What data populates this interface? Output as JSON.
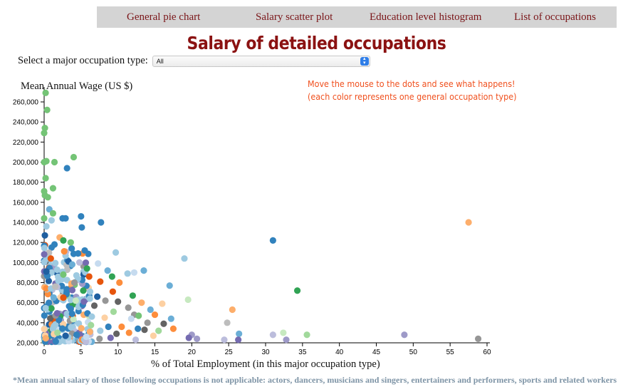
{
  "nav": {
    "items": [
      "General pie chart",
      "Salary scatter plot",
      "Education level histogram",
      "List of occupations"
    ]
  },
  "page_title": "Salary of detailed occupations",
  "selector": {
    "label": "Select a major occupation type:",
    "value": "All"
  },
  "hint": {
    "line1": "Move the mouse to the dots and see what happens!",
    "line2": "(each color represents one general occupation type)"
  },
  "footnote": "*Mean annual salary of those following occupations is not applicable: actors, dancers, musicians and singers, entertainers and performers, sports and related workers",
  "colors": {
    "palette": [
      "#3182bd",
      "#6baed6",
      "#9ecae1",
      "#c6dbef",
      "#e6550d",
      "#fd8d3c",
      "#fdae6b",
      "#fdd0a2",
      "#31a354",
      "#74c476",
      "#a1d99b",
      "#c7e9c0",
      "#756bb1",
      "#9e9ac8",
      "#bcbddc",
      "#636363",
      "#969696",
      "#bdbdbd",
      "#1f5fa0"
    ]
  },
  "chart_data": {
    "type": "scatter",
    "xlabel": "% of Total Employment (in this major occupation type)",
    "ylabel": "Mean Annual Wage (US $)",
    "xlim": [
      0,
      60
    ],
    "ylim": [
      20000,
      270000
    ],
    "x_ticks": [
      0,
      5,
      10,
      15,
      20,
      25,
      30,
      35,
      40,
      45,
      50,
      55,
      60
    ],
    "y_ticks": [
      20000,
      40000,
      60000,
      80000,
      100000,
      120000,
      140000,
      160000,
      180000,
      200000,
      220000,
      240000,
      260000
    ],
    "x_tick_labels": [
      "0",
      "5",
      "10",
      "15",
      "20",
      "25",
      "30",
      "35",
      "40",
      "45",
      "50",
      "55",
      "60"
    ],
    "y_tick_labels": [
      "20,000",
      "40,000",
      "60,000",
      "80,000",
      "100,000",
      "120,000",
      "140,000",
      "160,000",
      "180,000",
      "200,000",
      "220,000",
      "240,000",
      "260,000"
    ],
    "points": [
      {
        "x": 0.2,
        "y": 269000,
        "c": 9
      },
      {
        "x": 0.4,
        "y": 252000,
        "c": 9
      },
      {
        "x": 0.1,
        "y": 234000,
        "c": 9
      },
      {
        "x": 0.0,
        "y": 229000,
        "c": 9
      },
      {
        "x": 4.0,
        "y": 205000,
        "c": 9
      },
      {
        "x": 0.3,
        "y": 201000,
        "c": 9
      },
      {
        "x": 0.0,
        "y": 200000,
        "c": 9
      },
      {
        "x": 1.4,
        "y": 200000,
        "c": 9
      },
      {
        "x": 3.1,
        "y": 194000,
        "c": 0
      },
      {
        "x": 0.2,
        "y": 184000,
        "c": 9
      },
      {
        "x": 1.2,
        "y": 174000,
        "c": 9
      },
      {
        "x": 0.0,
        "y": 171000,
        "c": 9
      },
      {
        "x": 0.1,
        "y": 167000,
        "c": 9
      },
      {
        "x": 0.5,
        "y": 165000,
        "c": 9
      },
      {
        "x": 0.7,
        "y": 153000,
        "c": 1
      },
      {
        "x": 1.2,
        "y": 149000,
        "c": 9
      },
      {
        "x": 0.0,
        "y": 144000,
        "c": 9
      },
      {
        "x": 2.5,
        "y": 144000,
        "c": 0
      },
      {
        "x": 2.9,
        "y": 144000,
        "c": 0
      },
      {
        "x": 5.0,
        "y": 146000,
        "c": 0
      },
      {
        "x": 1.0,
        "y": 142000,
        "c": 2
      },
      {
        "x": 7.7,
        "y": 140000,
        "c": 0
      },
      {
        "x": 57.5,
        "y": 140000,
        "c": 6
      },
      {
        "x": 0.3,
        "y": 136000,
        "c": 2
      },
      {
        "x": 5.1,
        "y": 135000,
        "c": 0
      },
      {
        "x": 0.1,
        "y": 127000,
        "c": 18
      },
      {
        "x": 2.1,
        "y": 125000,
        "c": 6
      },
      {
        "x": 2.6,
        "y": 122000,
        "c": 8
      },
      {
        "x": 3.6,
        "y": 120000,
        "c": 9
      },
      {
        "x": 31.0,
        "y": 122000,
        "c": 0
      },
      {
        "x": 1.4,
        "y": 118000,
        "c": 0
      },
      {
        "x": 5.5,
        "y": 112000,
        "c": 0
      },
      {
        "x": 9.7,
        "y": 110000,
        "c": 2
      },
      {
        "x": 4.6,
        "y": 109000,
        "c": 0
      },
      {
        "x": 0.9,
        "y": 104000,
        "c": 4
      },
      {
        "x": 19.0,
        "y": 104000,
        "c": 2
      },
      {
        "x": 3.3,
        "y": 101000,
        "c": 18
      },
      {
        "x": 7.3,
        "y": 99000,
        "c": 3
      },
      {
        "x": 3.8,
        "y": 98000,
        "c": 1
      },
      {
        "x": 5.8,
        "y": 94000,
        "c": 8
      },
      {
        "x": 8.6,
        "y": 92000,
        "c": 1
      },
      {
        "x": 13.5,
        "y": 92000,
        "c": 1
      },
      {
        "x": 11.3,
        "y": 89000,
        "c": 2
      },
      {
        "x": 12.2,
        "y": 90000,
        "c": 3
      },
      {
        "x": 0.3,
        "y": 91000,
        "c": 18
      },
      {
        "x": 2.6,
        "y": 88000,
        "c": 9
      },
      {
        "x": 6.1,
        "y": 86000,
        "c": 4
      },
      {
        "x": 9.2,
        "y": 86000,
        "c": 8
      },
      {
        "x": 7.6,
        "y": 81000,
        "c": 4
      },
      {
        "x": 10.2,
        "y": 80000,
        "c": 5
      },
      {
        "x": 3.7,
        "y": 79000,
        "c": 6
      },
      {
        "x": 4.1,
        "y": 80000,
        "c": 16
      },
      {
        "x": 17.0,
        "y": 77000,
        "c": 1
      },
      {
        "x": 34.3,
        "y": 72000,
        "c": 8
      },
      {
        "x": 1.5,
        "y": 76000,
        "c": 17
      },
      {
        "x": 9.3,
        "y": 71000,
        "c": 4
      },
      {
        "x": 5.3,
        "y": 72000,
        "c": 8
      },
      {
        "x": 12.0,
        "y": 67000,
        "c": 8
      },
      {
        "x": 7.2,
        "y": 66000,
        "c": 18
      },
      {
        "x": 19.5,
        "y": 63000,
        "c": 11
      },
      {
        "x": 10.0,
        "y": 61000,
        "c": 15
      },
      {
        "x": 13.2,
        "y": 60000,
        "c": 6
      },
      {
        "x": 16.0,
        "y": 59000,
        "c": 7
      },
      {
        "x": 8.3,
        "y": 62000,
        "c": 16
      },
      {
        "x": 2.6,
        "y": 65000,
        "c": 4
      },
      {
        "x": 6.8,
        "y": 57000,
        "c": 15
      },
      {
        "x": 11.4,
        "y": 55000,
        "c": 16
      },
      {
        "x": 14.4,
        "y": 53000,
        "c": 1
      },
      {
        "x": 25.5,
        "y": 53000,
        "c": 6
      },
      {
        "x": 15.0,
        "y": 48000,
        "c": 5
      },
      {
        "x": 9.4,
        "y": 51000,
        "c": 10
      },
      {
        "x": 12.2,
        "y": 48000,
        "c": 16
      },
      {
        "x": 12.8,
        "y": 47000,
        "c": 9
      },
      {
        "x": 17.2,
        "y": 44000,
        "c": 1
      },
      {
        "x": 11.8,
        "y": 44000,
        "c": 3
      },
      {
        "x": 8.2,
        "y": 45000,
        "c": 7
      },
      {
        "x": 24.8,
        "y": 40000,
        "c": 17
      },
      {
        "x": 14.0,
        "y": 40000,
        "c": 16
      },
      {
        "x": 16.2,
        "y": 39000,
        "c": 15
      },
      {
        "x": 8.7,
        "y": 36000,
        "c": 0
      },
      {
        "x": 10.5,
        "y": 36000,
        "c": 5
      },
      {
        "x": 12.7,
        "y": 34000,
        "c": 0
      },
      {
        "x": 13.6,
        "y": 33000,
        "c": 15
      },
      {
        "x": 15.5,
        "y": 32000,
        "c": 10
      },
      {
        "x": 17.5,
        "y": 34000,
        "c": 5
      },
      {
        "x": 6.2,
        "y": 31000,
        "c": 6
      },
      {
        "x": 7.6,
        "y": 32000,
        "c": 2
      },
      {
        "x": 9.8,
        "y": 29000,
        "c": 15
      },
      {
        "x": 11.5,
        "y": 30000,
        "c": 5
      },
      {
        "x": 14.8,
        "y": 27000,
        "c": 7
      },
      {
        "x": 20.0,
        "y": 28000,
        "c": 13
      },
      {
        "x": 19.6,
        "y": 25000,
        "c": 12
      },
      {
        "x": 20.7,
        "y": 24000,
        "c": 13
      },
      {
        "x": 24.4,
        "y": 23000,
        "c": 14
      },
      {
        "x": 26.4,
        "y": 29000,
        "c": 1
      },
      {
        "x": 26.3,
        "y": 23000,
        "c": 12
      },
      {
        "x": 31.0,
        "y": 28000,
        "c": 14
      },
      {
        "x": 32.4,
        "y": 30000,
        "c": 11
      },
      {
        "x": 32.8,
        "y": 23000,
        "c": 13
      },
      {
        "x": 35.6,
        "y": 28000,
        "c": 10
      },
      {
        "x": 48.8,
        "y": 28000,
        "c": 13
      },
      {
        "x": 58.8,
        "y": 24000,
        "c": 16
      },
      {
        "x": 7.5,
        "y": 24000,
        "c": 16
      },
      {
        "x": 9.0,
        "y": 25000,
        "c": 12
      },
      {
        "x": 12.4,
        "y": 23000,
        "c": 14
      },
      {
        "x": 2.9,
        "y": 27000,
        "c": 18
      },
      {
        "x": 1.8,
        "y": 30000,
        "c": 10
      },
      {
        "x": 5.7,
        "y": 26000,
        "c": 3
      },
      {
        "x": 4.4,
        "y": 28000,
        "c": 0
      }
    ],
    "cluster": {
      "x_max": 6.5,
      "y_min": 21000,
      "y_max": 118000,
      "count": 260,
      "seed": 7
    }
  }
}
